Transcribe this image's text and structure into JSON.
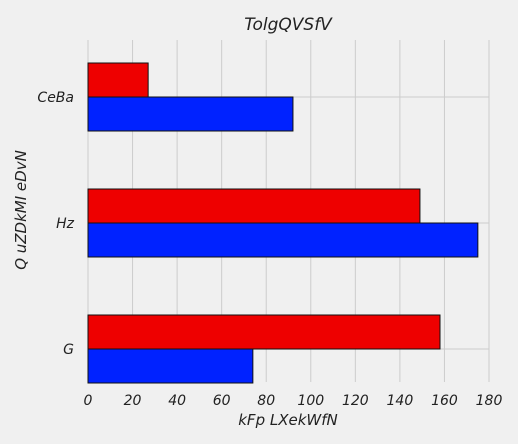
{
  "chart_data": {
    "type": "bar",
    "orientation": "horizontal",
    "title": "TolgQVSfV",
    "xlabel": "kFp LXekWfN",
    "ylabel": "Q uZDkMI eDvN",
    "categories": [
      "CeBa",
      "Hz",
      "G"
    ],
    "series": [
      {
        "color": "#ee0000",
        "values": [
          27,
          149,
          158
        ]
      },
      {
        "color": "#0022ff",
        "values": [
          92,
          175,
          74
        ]
      }
    ],
    "xlim": [
      0,
      180
    ],
    "xticks": [
      0,
      20,
      40,
      60,
      80,
      100,
      120,
      140,
      160,
      180
    ],
    "grid": true,
    "colors": {
      "background": "#f0f0f0",
      "grid": "#cccccc",
      "edge": "#111111",
      "text": "#222222"
    }
  }
}
